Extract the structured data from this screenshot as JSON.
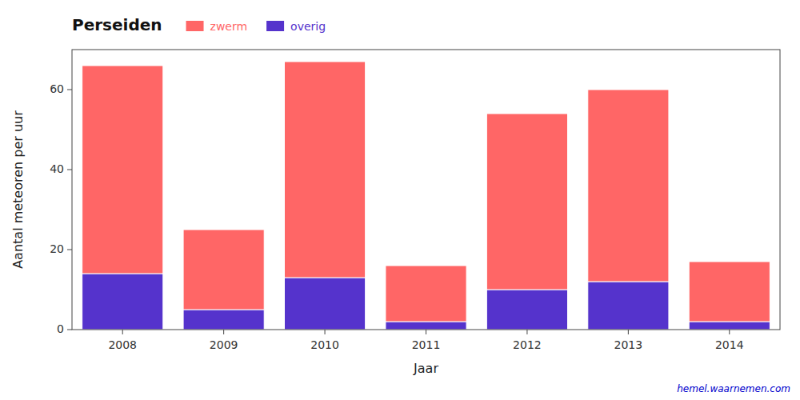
{
  "chart_data": {
    "type": "bar",
    "stacked": true,
    "title": "Perseiden",
    "xlabel": "Jaar",
    "ylabel": "Aantal meteoren per uur",
    "categories": [
      "2008",
      "2009",
      "2010",
      "2011",
      "2012",
      "2013",
      "2014"
    ],
    "series": [
      {
        "name": "overig",
        "color": "#5533CC",
        "values": [
          14,
          5,
          13,
          2,
          10,
          12,
          2
        ]
      },
      {
        "name": "zwerm",
        "color": "#FF6666",
        "values": [
          52,
          20,
          54,
          14,
          44,
          48,
          15
        ]
      }
    ],
    "ylim": [
      0,
      70
    ],
    "yticks": [
      0,
      20,
      40,
      60
    ],
    "grid": false,
    "legend": "upper left",
    "annotations": [
      "hemel.waarnemen.com"
    ]
  }
}
